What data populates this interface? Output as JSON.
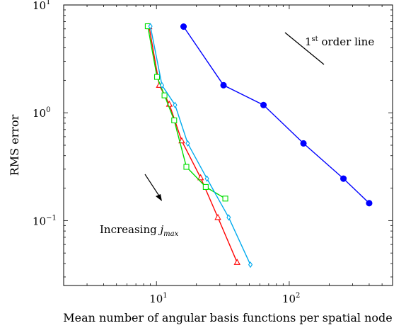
{
  "chart_data": {
    "type": "line",
    "xlabel": "Mean number of angular basis functions per spatial node",
    "ylabel": "RMS error",
    "xscale": "log",
    "yscale": "log",
    "xlim": [
      2,
      600
    ],
    "ylim": [
      0.025,
      10
    ],
    "grid": false,
    "x_ticks": [
      {
        "value": 10,
        "base": "10",
        "exp": "1"
      },
      {
        "value": 100,
        "base": "10",
        "exp": "2"
      }
    ],
    "y_ticks": [
      {
        "value": 0.1,
        "base": "10",
        "exp": "−1"
      },
      {
        "value": 1,
        "base": "10",
        "exp": "0"
      },
      {
        "value": 10,
        "base": "10",
        "exp": "1"
      }
    ],
    "series": [
      {
        "color": "#0000ff",
        "marker": "circle",
        "x": [
          16,
          32,
          64,
          128,
          256,
          400
        ],
        "y": [
          6.3,
          1.8,
          1.18,
          0.52,
          0.245,
          0.145
        ]
      },
      {
        "color": "#ff0000",
        "marker": "triangle",
        "x": [
          8.8,
          10.5,
          12.5,
          15.5,
          21.5,
          29,
          40.5
        ],
        "y": [
          6.3,
          1.8,
          1.2,
          0.55,
          0.25,
          0.107,
          0.041
        ]
      },
      {
        "color": "#00dd00",
        "marker": "square",
        "x": [
          8.6,
          10.1,
          11.5,
          13.6,
          16.8,
          23.5,
          33
        ],
        "y": [
          6.35,
          2.15,
          1.45,
          0.85,
          0.315,
          0.205,
          0.16
        ]
      },
      {
        "color": "#00aaee",
        "marker": "diamond",
        "x": [
          9,
          11,
          13.8,
          17.2,
          24,
          35,
          51
        ],
        "y": [
          6.35,
          1.8,
          1.18,
          0.52,
          0.245,
          0.107,
          0.039
        ]
      }
    ],
    "annotations": {
      "order_line_label": {
        "base": "1",
        "sup": "st",
        "rest": " order line"
      },
      "increasing_label": {
        "text": "Increasing ",
        "var": "j",
        "sub": "max"
      }
    }
  }
}
